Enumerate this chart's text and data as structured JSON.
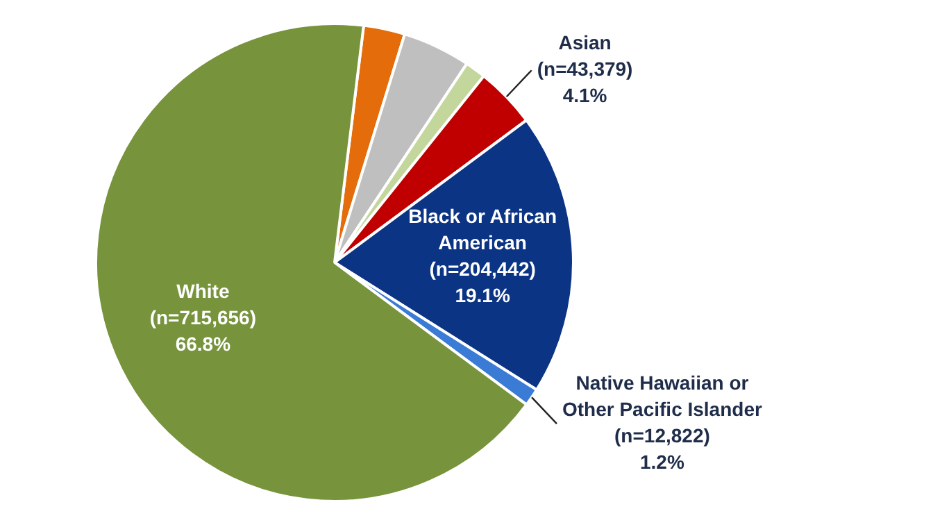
{
  "chart_data": {
    "type": "pie",
    "legend": false,
    "categories": [
      null,
      null,
      null,
      "Asian",
      "Black or African American",
      "Native Hawaiian or Other Pacific Islander",
      "White"
    ],
    "values": [
      2.8,
      4.6,
      1.4,
      4.1,
      19.1,
      1.2,
      66.8
    ],
    "colors": [
      "#e46c0a",
      "#bfbfbf",
      "#c3d69b",
      "#c00000",
      "#0c3484",
      "#3a7bd5",
      "#77933c"
    ],
    "value_labels": [
      null,
      null,
      null,
      "(n=43,379)\n4.1%",
      "(n=204,442)\n19.1%",
      "(n=12,822)\n1.2%",
      "(n=715,656)\n66.8%"
    ]
  }
}
